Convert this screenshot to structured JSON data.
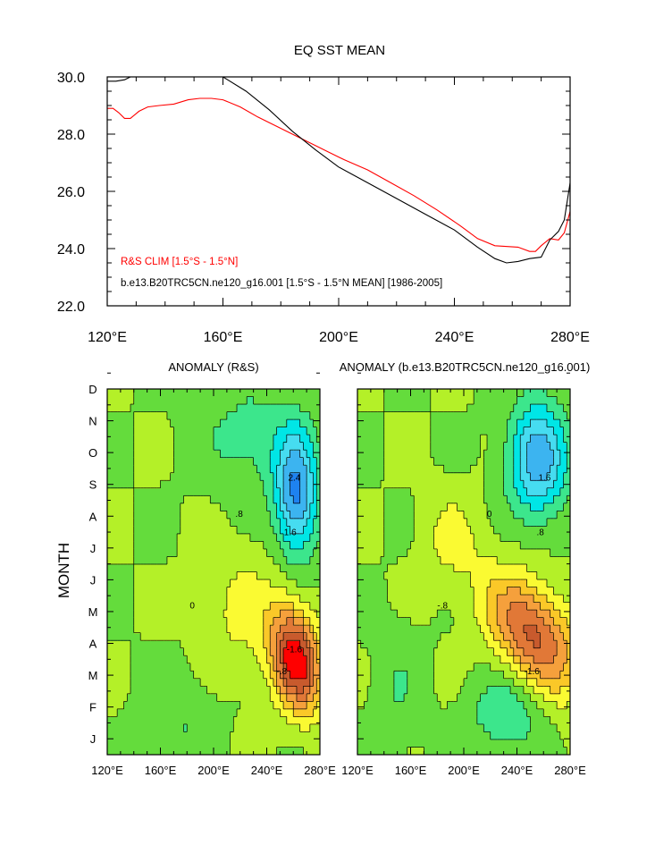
{
  "chart_data": [
    {
      "type": "line",
      "title": "EQ SST MEAN",
      "xlim": [
        120,
        280
      ],
      "ylim": [
        22,
        30
      ],
      "x_ticks": [
        120,
        160,
        200,
        240,
        280
      ],
      "x_tick_labels": [
        "120°E",
        "160°E",
        "200°E",
        "240°E",
        "280°E"
      ],
      "y_ticks": [
        22,
        24,
        26,
        28,
        30
      ],
      "y_tick_labels": [
        "22.0",
        "24.0",
        "26.0",
        "28.0",
        "30.0"
      ],
      "legend_position": "bottom-left",
      "series": [
        {
          "name": "R&S CLIM [1.5°S - 1.5°N]",
          "color": "#ff0000",
          "x": [
            120,
            122,
            124,
            126,
            128,
            131,
            134,
            138,
            143,
            148,
            152,
            156,
            160,
            166,
            172,
            178,
            184,
            190,
            196,
            202,
            210,
            218,
            226,
            234,
            242,
            248,
            254,
            262,
            266,
            268,
            270,
            273,
            276,
            278,
            280
          ],
          "y": [
            28.9,
            28.9,
            28.75,
            28.55,
            28.55,
            28.8,
            28.95,
            29.0,
            29.05,
            29.2,
            29.25,
            29.25,
            29.2,
            28.95,
            28.6,
            28.3,
            28.0,
            27.7,
            27.4,
            27.1,
            26.75,
            26.3,
            25.85,
            25.35,
            24.8,
            24.35,
            24.1,
            24.05,
            23.9,
            23.9,
            24.1,
            24.35,
            24.3,
            24.55,
            25.3
          ]
        },
        {
          "name": "b.e13.B20TRC5CN.ne120_g16.001 [1.5°S - 1.5°N MEAN] [1986-2005]",
          "color": "#000000",
          "x": [
            120,
            123,
            126,
            128,
            160,
            168,
            176,
            184,
            192,
            200,
            210,
            220,
            230,
            240,
            248,
            254,
            258,
            262,
            266,
            270,
            273,
            276,
            278,
            280
          ],
          "y": [
            29.85,
            29.85,
            29.9,
            30.0,
            30.0,
            29.5,
            28.85,
            28.1,
            27.45,
            26.85,
            26.3,
            25.75,
            25.2,
            24.65,
            24.05,
            23.65,
            23.5,
            23.55,
            23.65,
            23.7,
            24.3,
            24.6,
            25.0,
            26.3
          ]
        }
      ]
    },
    {
      "type": "heatmap",
      "title": "ANOMALY (R&S)",
      "ylabel": "MONTH",
      "xlim": [
        120,
        280
      ],
      "x_tick_labels": [
        "120°E",
        "160°E",
        "200°E",
        "240°E",
        "280°E"
      ],
      "months": [
        "J",
        "F",
        "M",
        "A",
        "M",
        "J",
        "J",
        "A",
        "S",
        "O",
        "N",
        "D"
      ],
      "contour_interval": 0.4,
      "contour_labels": [
        "2.4",
        "1.6",
        ".8",
        "0",
        "-.8",
        "-1.6"
      ],
      "features": [
        {
          "lon": 262,
          "month": 3.0,
          "amp": 2.8,
          "lon_sigma": 18,
          "month_sigma": 1.6,
          "lon_drift_per_month": -3
        },
        {
          "lon": 262,
          "month": 8.2,
          "amp": -2.1,
          "lon_sigma": 16,
          "month_sigma": 1.9,
          "lon_drift_per_month": 0
        },
        {
          "lon": 222,
          "month": 4.5,
          "amp": 0.5,
          "lon_sigma": 30,
          "month_sigma": 2.0,
          "lon_drift_per_month": 0
        },
        {
          "lon": 228,
          "month": 10.0,
          "amp": -0.6,
          "lon_sigma": 36,
          "month_sigma": 1.6,
          "lon_drift_per_month": 0
        },
        {
          "lon": 175,
          "month": 1.0,
          "amp": -0.4,
          "lon_sigma": 26,
          "month_sigma": 1.6,
          "lon_drift_per_month": 0
        }
      ]
    },
    {
      "type": "heatmap",
      "title": "ANOMALY (b.e13.B20TRC5CN.ne120_g16.001)",
      "xlim": [
        120,
        280
      ],
      "x_tick_labels": [
        "120°E",
        "160°E",
        "200°E",
        "240°E",
        "280°E"
      ],
      "months": [
        "J",
        "F",
        "M",
        "A",
        "M",
        "J",
        "J",
        "A",
        "S",
        "O",
        "N",
        "D"
      ],
      "contour_interval": 0.4,
      "contour_labels": [
        "1.6",
        ".8",
        "0",
        "-.8",
        "-1.6"
      ],
      "features": [
        {
          "lon": 252,
          "month": 3.8,
          "amp": 2.1,
          "lon_sigma": 30,
          "month_sigma": 1.8,
          "lon_drift_per_month": -9
        },
        {
          "lon": 256,
          "month": 9.3,
          "amp": -1.9,
          "lon_sigma": 22,
          "month_sigma": 1.8,
          "lon_drift_per_month": 0
        },
        {
          "lon": 232,
          "month": 1.3,
          "amp": -0.8,
          "lon_sigma": 26,
          "month_sigma": 1.2,
          "lon_drift_per_month": 0
        },
        {
          "lon": 190,
          "month": 6.8,
          "amp": 0.5,
          "lon_sigma": 22,
          "month_sigma": 1.5,
          "lon_drift_per_month": 0
        },
        {
          "lon": 150,
          "month": 2.0,
          "amp": -0.35,
          "lon_sigma": 18,
          "month_sigma": 2.0,
          "lon_drift_per_month": 0
        }
      ]
    }
  ],
  "colormap": {
    "levels": [
      -2.4,
      -2.0,
      -1.6,
      -1.2,
      -0.8,
      -0.4,
      0.0,
      0.4,
      0.8,
      1.2,
      1.6,
      2.0,
      2.4
    ],
    "colors": [
      "#0000c8",
      "#0050e8",
      "#1e82f0",
      "#3cb4f0",
      "#46dcf0",
      "#00e6e6",
      "#3ce68c",
      "#64dc3c",
      "#b4f028",
      "#fafa32",
      "#fac828",
      "#f5a03c",
      "#e17837",
      "#c85a2d",
      "#ff0000"
    ]
  }
}
